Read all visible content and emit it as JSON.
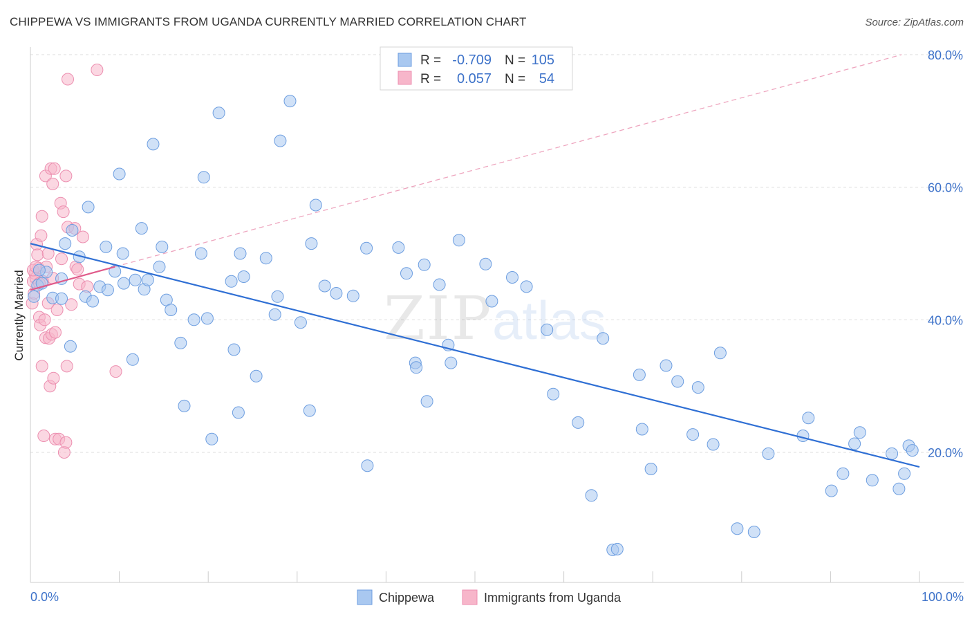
{
  "title": "CHIPPEWA VS IMMIGRANTS FROM UGANDA CURRENTLY MARRIED CORRELATION CHART",
  "source": "Source: ZipAtlas.com",
  "watermark": {
    "zip": "ZIP",
    "atlas": "atlas"
  },
  "colors": {
    "blue_fill": "#a9c8f0",
    "blue_stroke": "#6d9ee0",
    "blue_line": "#2f6fd4",
    "pink_fill": "#f7b6ca",
    "pink_stroke": "#ec8fb0",
    "pink_line": "#e05a8a",
    "tick_text": "#3d72c9",
    "grid": "#dddddd"
  },
  "legend": {
    "r_label": "R =",
    "n_label": "N =",
    "rows": [
      {
        "r": "-0.709",
        "n": "105"
      },
      {
        "r": "0.057",
        "n": "54"
      }
    ]
  },
  "chart_data": {
    "type": "scatter",
    "title": "CHIPPEWA VS IMMIGRANTS FROM UGANDA CURRENTLY MARRIED CORRELATION CHART",
    "xlabel": "",
    "ylabel": "Currently Married",
    "xlim": [
      0,
      100
    ],
    "ylim": [
      0,
      85
    ],
    "x_tick_labels": [
      "0.0%",
      "100.0%"
    ],
    "y_ticks": [
      20,
      40,
      60,
      80
    ],
    "y_tick_labels": [
      "20.0%",
      "40.0%",
      "60.0%",
      "80.0%"
    ],
    "grid": true,
    "legend_position": "top-center",
    "series": [
      {
        "name": "Chippewa",
        "color": "#a9c8f0",
        "trend": {
          "x": [
            0,
            100
          ],
          "y": [
            51.5,
            17.8
          ]
        },
        "points": [
          [
            0.4,
            43.5
          ],
          [
            0.8,
            45.2
          ],
          [
            1.3,
            45.5
          ],
          [
            1.8,
            47.2
          ],
          [
            2.5,
            43.3
          ],
          [
            3.5,
            46.2
          ],
          [
            3.5,
            43.2
          ],
          [
            3.9,
            51.5
          ],
          [
            4.5,
            36.0
          ],
          [
            4.7,
            53.5
          ],
          [
            5.5,
            49.5
          ],
          [
            6.2,
            43.5
          ],
          [
            6.5,
            57.0
          ],
          [
            7.0,
            42.8
          ],
          [
            7.8,
            45.0
          ],
          [
            8.5,
            51.0
          ],
          [
            8.7,
            44.5
          ],
          [
            9.5,
            47.3
          ],
          [
            10.0,
            62.0
          ],
          [
            10.4,
            50.0
          ],
          [
            10.5,
            45.5
          ],
          [
            11.5,
            34.0
          ],
          [
            11.8,
            46.0
          ],
          [
            12.5,
            53.8
          ],
          [
            12.8,
            44.6
          ],
          [
            13.2,
            46.0
          ],
          [
            13.8,
            66.5
          ],
          [
            14.5,
            48.0
          ],
          [
            14.8,
            51.0
          ],
          [
            15.3,
            43.0
          ],
          [
            15.8,
            41.5
          ],
          [
            16.9,
            36.5
          ],
          [
            17.3,
            27.0
          ],
          [
            18.4,
            40.0
          ],
          [
            19.2,
            50.0
          ],
          [
            19.5,
            61.5
          ],
          [
            19.9,
            40.2
          ],
          [
            20.4,
            22.0
          ],
          [
            21.2,
            71.2
          ],
          [
            22.6,
            45.8
          ],
          [
            22.9,
            35.5
          ],
          [
            23.4,
            26.0
          ],
          [
            23.6,
            50.0
          ],
          [
            24.0,
            46.5
          ],
          [
            25.4,
            31.5
          ],
          [
            26.5,
            49.3
          ],
          [
            27.5,
            40.8
          ],
          [
            27.8,
            43.5
          ],
          [
            28.1,
            67.0
          ],
          [
            29.2,
            73.0
          ],
          [
            30.4,
            39.6
          ],
          [
            31.4,
            26.3
          ],
          [
            31.6,
            51.5
          ],
          [
            32.1,
            57.3
          ],
          [
            33.1,
            45.1
          ],
          [
            34.4,
            44.0
          ],
          [
            36.3,
            43.6
          ],
          [
            37.8,
            50.8
          ],
          [
            37.9,
            18.0
          ],
          [
            41.4,
            50.9
          ],
          [
            42.3,
            47.0
          ],
          [
            43.3,
            33.5
          ],
          [
            43.4,
            32.8
          ],
          [
            44.3,
            48.3
          ],
          [
            44.6,
            27.7
          ],
          [
            46.0,
            45.3
          ],
          [
            47.0,
            36.2
          ],
          [
            47.3,
            33.5
          ],
          [
            48.2,
            52.0
          ],
          [
            51.2,
            48.4
          ],
          [
            51.9,
            42.8
          ],
          [
            54.2,
            46.4
          ],
          [
            55.8,
            45.0
          ],
          [
            58.1,
            38.5
          ],
          [
            58.8,
            28.8
          ],
          [
            61.6,
            24.5
          ],
          [
            63.1,
            13.5
          ],
          [
            64.4,
            37.2
          ],
          [
            65.5,
            5.3
          ],
          [
            66.0,
            5.4
          ],
          [
            68.5,
            31.7
          ],
          [
            68.8,
            23.5
          ],
          [
            69.8,
            17.5
          ],
          [
            71.5,
            33.1
          ],
          [
            72.8,
            30.7
          ],
          [
            74.5,
            22.7
          ],
          [
            75.1,
            29.8
          ],
          [
            76.8,
            21.2
          ],
          [
            77.6,
            35.0
          ],
          [
            79.5,
            8.5
          ],
          [
            81.4,
            8.0
          ],
          [
            83.0,
            19.8
          ],
          [
            86.9,
            22.5
          ],
          [
            87.5,
            25.2
          ],
          [
            90.1,
            14.2
          ],
          [
            91.4,
            16.8
          ],
          [
            92.7,
            21.3
          ],
          [
            93.3,
            23.0
          ],
          [
            94.7,
            15.8
          ],
          [
            96.9,
            19.8
          ],
          [
            97.7,
            14.5
          ],
          [
            98.3,
            16.8
          ],
          [
            98.8,
            21.0
          ],
          [
            99.2,
            20.3
          ],
          [
            1.0,
            47.5
          ]
        ]
      },
      {
        "name": "Immigrants from Uganda",
        "color": "#f7b6ca",
        "trend_solid": {
          "x": [
            0,
            9.5
          ],
          "y": [
            44.5,
            48.0
          ]
        },
        "trend_dashed": {
          "x": [
            9.5,
            98
          ],
          "y": [
            48.0,
            80.0
          ]
        },
        "points": [
          [
            0.2,
            42.5
          ],
          [
            0.3,
            45.8
          ],
          [
            0.4,
            44.0
          ],
          [
            0.5,
            47.0
          ],
          [
            0.6,
            46.3
          ],
          [
            0.7,
            51.4
          ],
          [
            0.8,
            49.8
          ],
          [
            0.9,
            47.8
          ],
          [
            1.0,
            40.4
          ],
          [
            1.1,
            39.2
          ],
          [
            1.2,
            52.7
          ],
          [
            1.3,
            55.6
          ],
          [
            1.3,
            33.0
          ],
          [
            1.4,
            45.8
          ],
          [
            1.5,
            22.5
          ],
          [
            1.6,
            40.0
          ],
          [
            1.7,
            61.7
          ],
          [
            1.7,
            37.3
          ],
          [
            1.8,
            48.0
          ],
          [
            2.0,
            50.0
          ],
          [
            2.0,
            42.5
          ],
          [
            2.1,
            37.2
          ],
          [
            2.2,
            30.0
          ],
          [
            2.3,
            62.8
          ],
          [
            2.4,
            37.8
          ],
          [
            2.5,
            60.5
          ],
          [
            2.5,
            46.3
          ],
          [
            2.6,
            31.2
          ],
          [
            2.7,
            62.8
          ],
          [
            2.8,
            38.1
          ],
          [
            2.8,
            22.0
          ],
          [
            3.0,
            41.5
          ],
          [
            3.2,
            22.0
          ],
          [
            3.4,
            57.6
          ],
          [
            3.5,
            49.2
          ],
          [
            3.7,
            56.3
          ],
          [
            3.8,
            20.0
          ],
          [
            4.0,
            61.7
          ],
          [
            4.0,
            21.5
          ],
          [
            4.1,
            33.0
          ],
          [
            4.2,
            54.0
          ],
          [
            4.2,
            76.3
          ],
          [
            4.6,
            42.3
          ],
          [
            5.0,
            53.8
          ],
          [
            5.1,
            48.0
          ],
          [
            5.3,
            47.6
          ],
          [
            5.5,
            45.4
          ],
          [
            5.9,
            52.5
          ],
          [
            6.4,
            45.0
          ],
          [
            7.5,
            77.7
          ],
          [
            9.6,
            32.2
          ],
          [
            0.3,
            47.5
          ],
          [
            0.6,
            48.0
          ],
          [
            1.0,
            45.5
          ]
        ]
      }
    ]
  }
}
